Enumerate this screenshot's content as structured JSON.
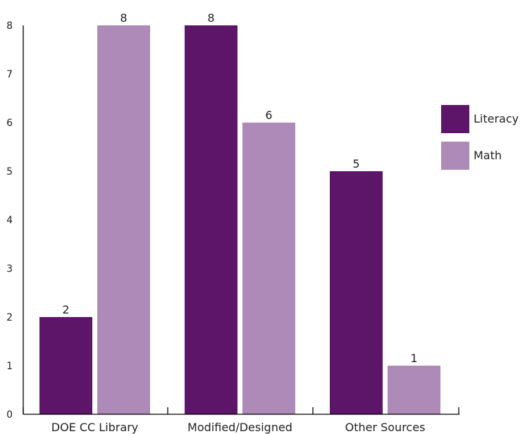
{
  "chart_data": {
    "type": "bar",
    "categories": [
      "DOE CC Library",
      "Modified/Designed",
      "Other Sources"
    ],
    "series": [
      {
        "name": "Literacy",
        "values": [
          2,
          8,
          5
        ],
        "color": "#5c1568"
      },
      {
        "name": "Math",
        "values": [
          8,
          6,
          1
        ],
        "color": "#ad8ab7"
      }
    ],
    "y_ticks": [
      "0",
      "1",
      "2",
      "3",
      "4",
      "5",
      "6",
      "7",
      "8"
    ],
    "ylim": [
      0,
      8
    ],
    "data_labels": [
      [
        "2",
        "8",
        "5"
      ],
      [
        "8",
        "6",
        "1"
      ]
    ],
    "legend": {
      "position": "right",
      "entries": [
        "Literacy",
        "Math"
      ]
    },
    "grid": false
  }
}
